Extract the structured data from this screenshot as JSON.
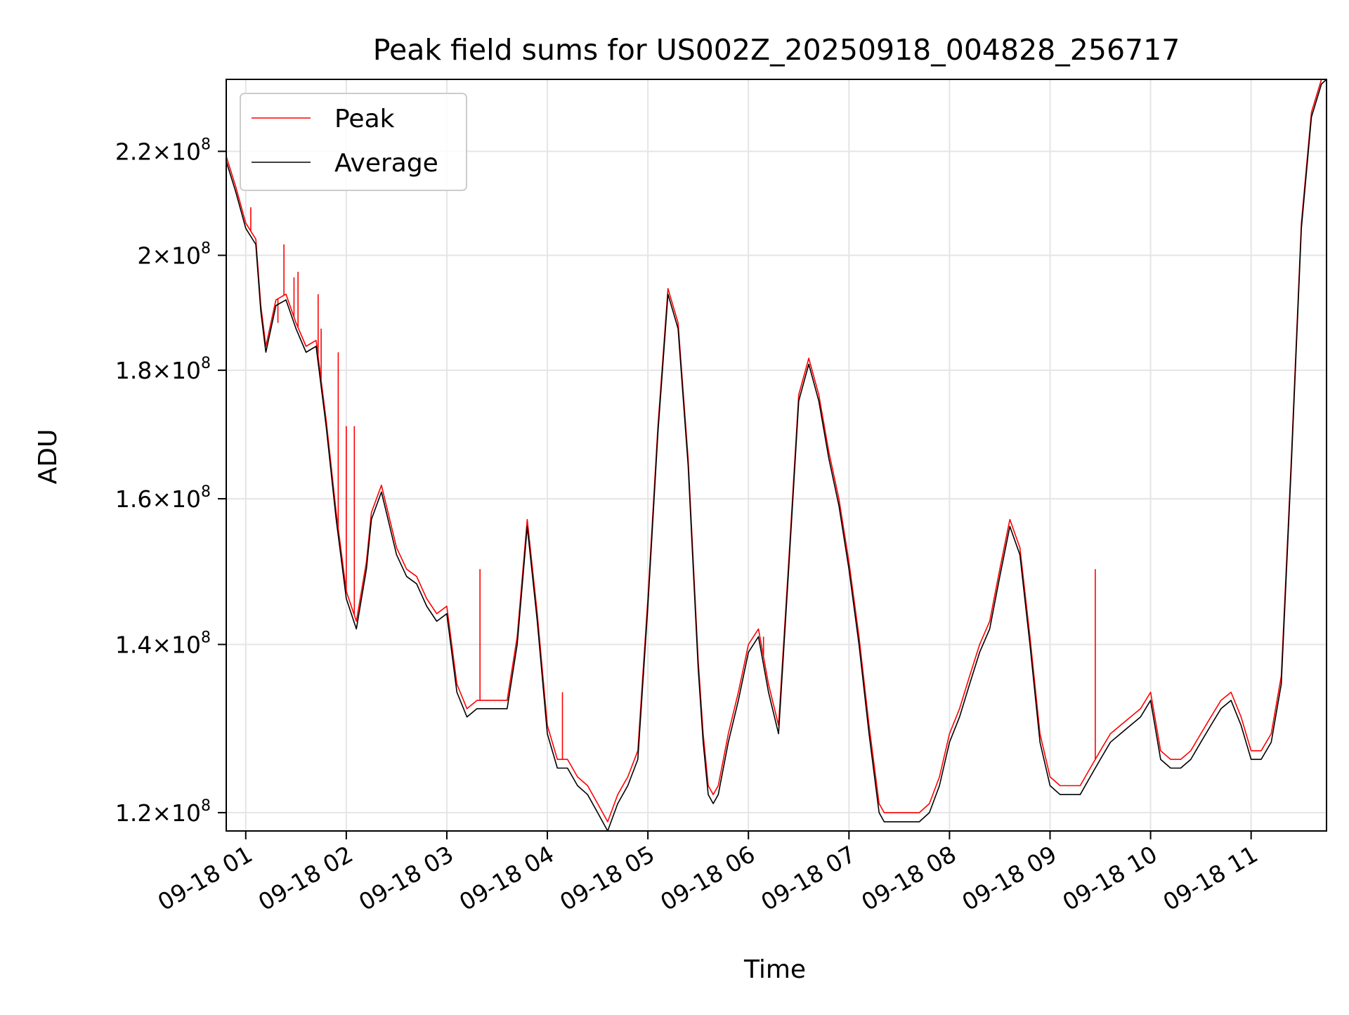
{
  "chart_data": {
    "type": "line",
    "title": "Peak field sums for US002Z_20250918_004828_256717",
    "xlabel": "Time",
    "ylabel": "ADU",
    "yscale": "log",
    "ylim": [
      118000000,
      235000000
    ],
    "xlim_hours": [
      0.806,
      11.75
    ],
    "grid": true,
    "legend": {
      "placement": "top-left",
      "entries": [
        "Peak",
        "Average"
      ]
    },
    "colors": {
      "Peak": "#ff0000",
      "Average": "#000000",
      "grid": "#e5e5e5"
    },
    "x_ticks": [
      {
        "hour": 1,
        "label": "09-18 01"
      },
      {
        "hour": 2,
        "label": "09-18 02"
      },
      {
        "hour": 3,
        "label": "09-18 03"
      },
      {
        "hour": 4,
        "label": "09-18 04"
      },
      {
        "hour": 5,
        "label": "09-18 05"
      },
      {
        "hour": 6,
        "label": "09-18 06"
      },
      {
        "hour": 7,
        "label": "09-18 07"
      },
      {
        "hour": 8,
        "label": "09-18 08"
      },
      {
        "hour": 9,
        "label": "09-18 09"
      },
      {
        "hour": 10,
        "label": "09-18 10"
      },
      {
        "hour": 11,
        "label": "09-18 11"
      }
    ],
    "y_ticks": [
      {
        "value": 120000000,
        "mantissa": "1.2",
        "exponent": "8"
      },
      {
        "value": 140000000,
        "mantissa": "1.4",
        "exponent": "8"
      },
      {
        "value": 160000000,
        "mantissa": "1.6",
        "exponent": "8"
      },
      {
        "value": 180000000,
        "mantissa": "1.8",
        "exponent": "8"
      },
      {
        "value": 200000000,
        "mantissa": "2",
        "exponent": "8"
      },
      {
        "value": 220000000,
        "mantissa": "2.2",
        "exponent": "8"
      }
    ],
    "series": [
      {
        "name": "Average",
        "x_hours": [
          0.806,
          0.9,
          1.0,
          1.1,
          1.15,
          1.2,
          1.3,
          1.4,
          1.5,
          1.6,
          1.7,
          1.8,
          1.9,
          2.0,
          2.1,
          2.2,
          2.25,
          2.35,
          2.5,
          2.6,
          2.7,
          2.8,
          2.9,
          3.0,
          3.1,
          3.2,
          3.3,
          3.4,
          3.5,
          3.6,
          3.7,
          3.8,
          3.9,
          4.0,
          4.1,
          4.2,
          4.3,
          4.4,
          4.5,
          4.6,
          4.7,
          4.8,
          4.9,
          5.0,
          5.1,
          5.2,
          5.3,
          5.4,
          5.5,
          5.55,
          5.6,
          5.65,
          5.7,
          5.8,
          5.9,
          6.0,
          6.1,
          6.2,
          6.3,
          6.4,
          6.5,
          6.6,
          6.7,
          6.8,
          6.9,
          7.0,
          7.1,
          7.2,
          7.3,
          7.35,
          7.4,
          7.5,
          7.6,
          7.7,
          7.8,
          7.9,
          8.0,
          8.1,
          8.2,
          8.3,
          8.4,
          8.5,
          8.6,
          8.7,
          8.8,
          8.9,
          9.0,
          9.1,
          9.2,
          9.3,
          9.4,
          9.5,
          9.6,
          9.7,
          9.8,
          9.9,
          10.0,
          10.1,
          10.2,
          10.3,
          10.4,
          10.5,
          10.6,
          10.7,
          10.8,
          10.9,
          11.0,
          11.1,
          11.2,
          11.3,
          11.4,
          11.5,
          11.6,
          11.7,
          11.75
        ],
        "values": [
          218000000,
          212000000,
          205000000,
          202000000,
          190000000,
          183000000,
          191000000,
          192000000,
          187000000,
          183000000,
          184000000,
          171000000,
          157000000,
          146000000,
          142000000,
          150000000,
          157000000,
          161000000,
          152000000,
          149000000,
          148000000,
          145000000,
          143000000,
          144000000,
          134000000,
          131000000,
          132000000,
          132000000,
          132000000,
          132000000,
          140000000,
          156000000,
          143000000,
          129000000,
          125000000,
          125000000,
          123000000,
          122000000,
          120000000,
          118000000,
          121000000,
          123000000,
          126000000,
          145000000,
          170000000,
          193000000,
          187000000,
          165000000,
          137000000,
          128000000,
          122000000,
          121000000,
          122000000,
          128000000,
          133000000,
          139000000,
          141000000,
          134000000,
          129000000,
          150000000,
          175000000,
          181000000,
          175000000,
          166000000,
          159000000,
          150000000,
          140000000,
          129000000,
          120000000,
          119000000,
          119000000,
          119000000,
          119000000,
          119000000,
          120000000,
          123000000,
          128000000,
          131000000,
          135000000,
          139000000,
          142000000,
          149000000,
          156000000,
          152000000,
          140000000,
          128000000,
          123000000,
          122000000,
          122000000,
          122000000,
          124000000,
          126000000,
          128000000,
          129000000,
          130000000,
          131000000,
          133000000,
          126000000,
          125000000,
          125000000,
          126000000,
          128000000,
          130000000,
          132000000,
          133000000,
          130000000,
          126000000,
          126000000,
          128000000,
          135000000,
          165000000,
          205000000,
          227000000,
          234000000,
          235000000
        ]
      },
      {
        "name": "Peak",
        "x_hours": [
          0.806,
          0.9,
          1.0,
          1.1,
          1.15,
          1.2,
          1.3,
          1.4,
          1.5,
          1.6,
          1.7,
          1.8,
          1.9,
          2.0,
          2.1,
          2.2,
          2.25,
          2.35,
          2.5,
          2.6,
          2.7,
          2.8,
          2.9,
          3.0,
          3.1,
          3.2,
          3.3,
          3.4,
          3.5,
          3.6,
          3.7,
          3.8,
          3.9,
          4.0,
          4.1,
          4.2,
          4.3,
          4.4,
          4.5,
          4.6,
          4.7,
          4.8,
          4.9,
          5.0,
          5.1,
          5.2,
          5.3,
          5.4,
          5.5,
          5.55,
          5.6,
          5.65,
          5.7,
          5.8,
          5.9,
          6.0,
          6.1,
          6.2,
          6.3,
          6.4,
          6.5,
          6.6,
          6.7,
          6.8,
          6.9,
          7.0,
          7.1,
          7.2,
          7.3,
          7.35,
          7.4,
          7.5,
          7.6,
          7.7,
          7.8,
          7.9,
          8.0,
          8.1,
          8.2,
          8.3,
          8.4,
          8.5,
          8.6,
          8.7,
          8.8,
          8.9,
          9.0,
          9.1,
          9.2,
          9.3,
          9.4,
          9.5,
          9.6,
          9.7,
          9.8,
          9.9,
          10.0,
          10.1,
          10.2,
          10.3,
          10.4,
          10.5,
          10.6,
          10.7,
          10.8,
          10.9,
          11.0,
          11.1,
          11.2,
          11.3,
          11.4,
          11.5,
          11.6,
          11.7,
          11.75
        ],
        "values": [
          219000000,
          213000000,
          206000000,
          203000000,
          191000000,
          184000000,
          192000000,
          193000000,
          188000000,
          184000000,
          185000000,
          172000000,
          158000000,
          147000000,
          143000000,
          151000000,
          158000000,
          162000000,
          153000000,
          150000000,
          149000000,
          146000000,
          144000000,
          145000000,
          135000000,
          132000000,
          133000000,
          133000000,
          133000000,
          133000000,
          141000000,
          157000000,
          144000000,
          130000000,
          126000000,
          126000000,
          124000000,
          123000000,
          121000000,
          119000000,
          122000000,
          124000000,
          127000000,
          146000000,
          171000000,
          194000000,
          188000000,
          166000000,
          138000000,
          129000000,
          123000000,
          122000000,
          123000000,
          129000000,
          134000000,
          140000000,
          142000000,
          135000000,
          130000000,
          151000000,
          176000000,
          182000000,
          176000000,
          167000000,
          160000000,
          151000000,
          141000000,
          130000000,
          121000000,
          120000000,
          120000000,
          120000000,
          120000000,
          120000000,
          121000000,
          124000000,
          129000000,
          132000000,
          136000000,
          140000000,
          143000000,
          150000000,
          157000000,
          153000000,
          141000000,
          129000000,
          124000000,
          123000000,
          123000000,
          123000000,
          125000000,
          127000000,
          129000000,
          130000000,
          131000000,
          132000000,
          134000000,
          127000000,
          126000000,
          126000000,
          127000000,
          129000000,
          131000000,
          133000000,
          134000000,
          131000000,
          127000000,
          127000000,
          129000000,
          136000000,
          166000000,
          206000000,
          228000000,
          235000000,
          236000000
        ],
        "spikes": [
          {
            "x_hour": 1.05,
            "value": 209000000
          },
          {
            "x_hour": 1.38,
            "value": 202000000
          },
          {
            "x_hour": 1.32,
            "value": 188000000
          },
          {
            "x_hour": 1.48,
            "value": 196000000
          },
          {
            "x_hour": 1.52,
            "value": 197000000
          },
          {
            "x_hour": 1.72,
            "value": 193000000
          },
          {
            "x_hour": 1.75,
            "value": 187000000
          },
          {
            "x_hour": 1.92,
            "value": 183000000
          },
          {
            "x_hour": 2.0,
            "value": 171000000
          },
          {
            "x_hour": 2.08,
            "value": 171000000
          },
          {
            "x_hour": 3.33,
            "value": 150000000
          },
          {
            "x_hour": 4.15,
            "value": 134000000
          },
          {
            "x_hour": 6.15,
            "value": 141000000
          },
          {
            "x_hour": 9.45,
            "value": 150000000
          }
        ]
      }
    ]
  }
}
